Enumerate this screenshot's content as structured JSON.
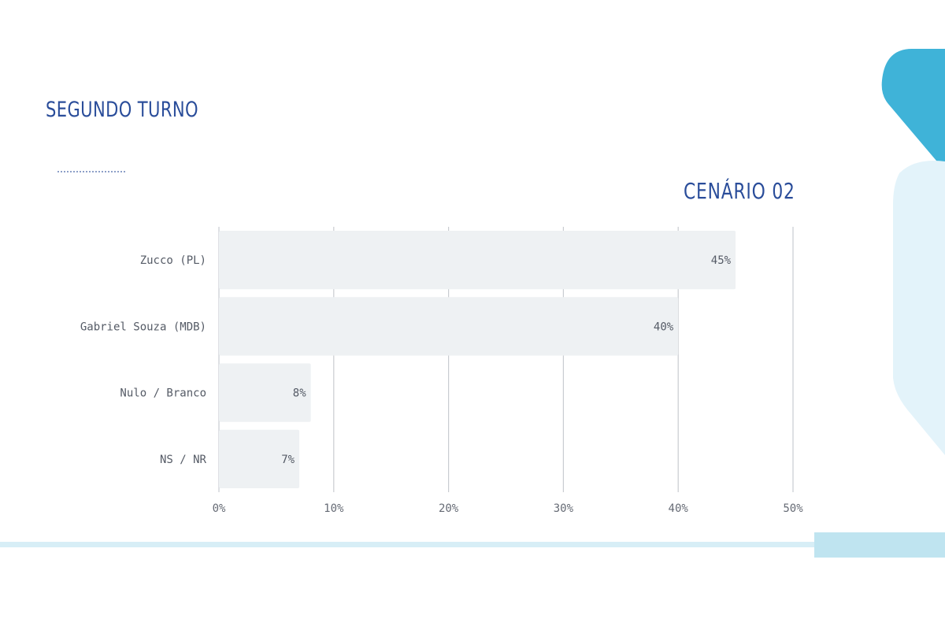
{
  "header": {
    "title": "SEGUNDO TURNO",
    "scenario": "CENÁRIO 02"
  },
  "colors": {
    "title": "#2a4d9a",
    "bar": "#eef1f3",
    "grid": "#c9ccd1",
    "accent_dark": "#3fb3d8",
    "accent_light": "#e3f3fa",
    "stripe": "#d7eef6"
  },
  "chart_data": {
    "type": "bar",
    "orientation": "horizontal",
    "categories": [
      "Zucco (PL)",
      "Gabriel Souza (MDB)",
      "Nulo / Branco",
      "NS / NR"
    ],
    "values": [
      45,
      40,
      8,
      7
    ],
    "value_labels": [
      "45%",
      "40%",
      "8%",
      "7%"
    ],
    "xlim": [
      0,
      50
    ],
    "xticks": [
      0,
      10,
      20,
      30,
      40,
      50
    ],
    "xtick_labels": [
      "0%",
      "10%",
      "20%",
      "30%",
      "40%",
      "50%"
    ],
    "grid": true
  }
}
